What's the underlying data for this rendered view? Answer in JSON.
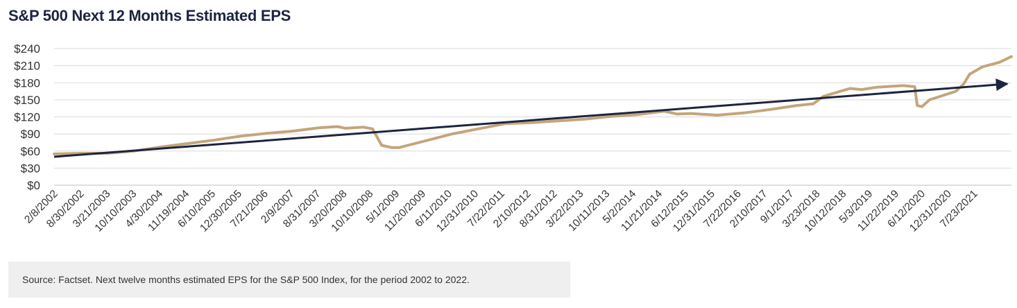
{
  "title": "S&P 500 Next 12 Months Estimated EPS",
  "source": "Source: Factset. Next twelve months estimated EPS for the S&P 500 Index, for the period 2002 to 2022.",
  "colors": {
    "eps_line": "#c4a57a",
    "trend_line": "#1c2440",
    "grid": "#d9d9d9",
    "axis": "#bfbfbf"
  },
  "chart_data": {
    "type": "line",
    "title": "S&P 500 Next 12 Months Estimated EPS",
    "xlabel": "",
    "ylabel": "",
    "ylim": [
      0,
      240
    ],
    "y_ticks": [
      0,
      30,
      60,
      90,
      120,
      150,
      180,
      210,
      240
    ],
    "y_tick_labels": [
      "$0",
      "$30",
      "$60",
      "$90",
      "$120",
      "$150",
      "$180",
      "$210",
      "$240"
    ],
    "x_tick_labels": [
      "2/8/2002",
      "8/30/2002",
      "3/21/2003",
      "10/10/2003",
      "4/30/2004",
      "11/19/2004",
      "6/10/2005",
      "12/30/2005",
      "7/21/2006",
      "2/9/2007",
      "8/31/2007",
      "3/20/2008",
      "10/10/2008",
      "5/1/2009",
      "11/20/2009",
      "6/11/2010",
      "12/31/2010",
      "7/22/2011",
      "2/10/2012",
      "8/31/2012",
      "3/22/2013",
      "10/11/2013",
      "5/2/2014",
      "11/21/2014",
      "6/12/2015",
      "12/31/2015",
      "7/22/2016",
      "2/10/2017",
      "9/1/2017",
      "3/23/2018",
      "10/12/2018",
      "5/3/2019",
      "11/22/2019",
      "6/12/2020",
      "12/31/2020",
      "7/23/2021"
    ],
    "x_range": [
      "2002-02-08",
      "2022-03-01"
    ],
    "grid": true,
    "legend": "none",
    "series": [
      {
        "x": [
          "2002-02-08",
          "2002-08-30",
          "2003-03-21",
          "2003-10-10",
          "2004-04-30",
          "2004-11-19",
          "2005-06-10",
          "2005-12-30",
          "2006-07-21",
          "2007-02-09",
          "2007-08-31",
          "2008-01-15",
          "2008-03-20",
          "2008-08-01",
          "2008-10-10",
          "2008-12-20",
          "2009-03-10",
          "2009-05-01",
          "2009-11-20",
          "2010-06-11",
          "2010-12-31",
          "2011-07-22",
          "2012-02-10",
          "2012-08-31",
          "2013-03-22",
          "2013-10-11",
          "2014-05-02",
          "2014-11-21",
          "2015-03-01",
          "2015-06-12",
          "2015-12-31",
          "2016-07-22",
          "2017-02-10",
          "2017-09-01",
          "2018-01-05",
          "2018-03-23",
          "2018-10-12",
          "2019-01-10",
          "2019-05-03",
          "2019-11-22",
          "2020-02-20",
          "2020-03-10",
          "2020-04-15",
          "2020-06-12",
          "2020-12-31",
          "2021-03-01",
          "2021-04-15",
          "2021-07-23",
          "2021-12-01",
          "2022-03-01"
        ],
        "values": [
          55,
          56,
          56,
          60,
          67,
          73,
          79,
          86,
          91,
          95,
          101,
          103,
          100,
          102,
          99,
          70,
          66,
          66,
          78,
          90,
          99,
          108,
          110,
          113,
          116,
          121,
          124,
          130,
          125,
          126,
          123,
          127,
          133,
          140,
          143,
          156,
          170,
          168,
          172,
          175,
          173,
          140,
          138,
          150,
          165,
          178,
          195,
          208,
          216,
          226
        ]
      },
      {
        "x": [
          "2002-02-08",
          "2022-03-01"
        ],
        "values": [
          50,
          178
        ]
      }
    ]
  }
}
